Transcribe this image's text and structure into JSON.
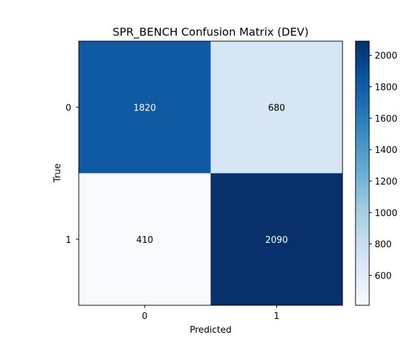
{
  "chart_data": {
    "type": "heatmap",
    "title": "SPR_BENCH Confusion Matrix (DEV)",
    "xlabel": "Predicted",
    "ylabel": "True",
    "x_categories": [
      "0",
      "1"
    ],
    "y_categories": [
      "0",
      "1"
    ],
    "values": [
      [
        1820,
        680
      ],
      [
        410,
        2090
      ]
    ],
    "colormap": "Blues",
    "colorbar": {
      "range": [
        410,
        2090
      ],
      "ticks": [
        600,
        800,
        1000,
        1200,
        1400,
        1600,
        1800,
        2000
      ],
      "tick_labels": [
        "600",
        "800",
        "1000",
        "1200",
        "1400",
        "1600",
        "1800",
        "2000"
      ]
    },
    "grid": false
  }
}
